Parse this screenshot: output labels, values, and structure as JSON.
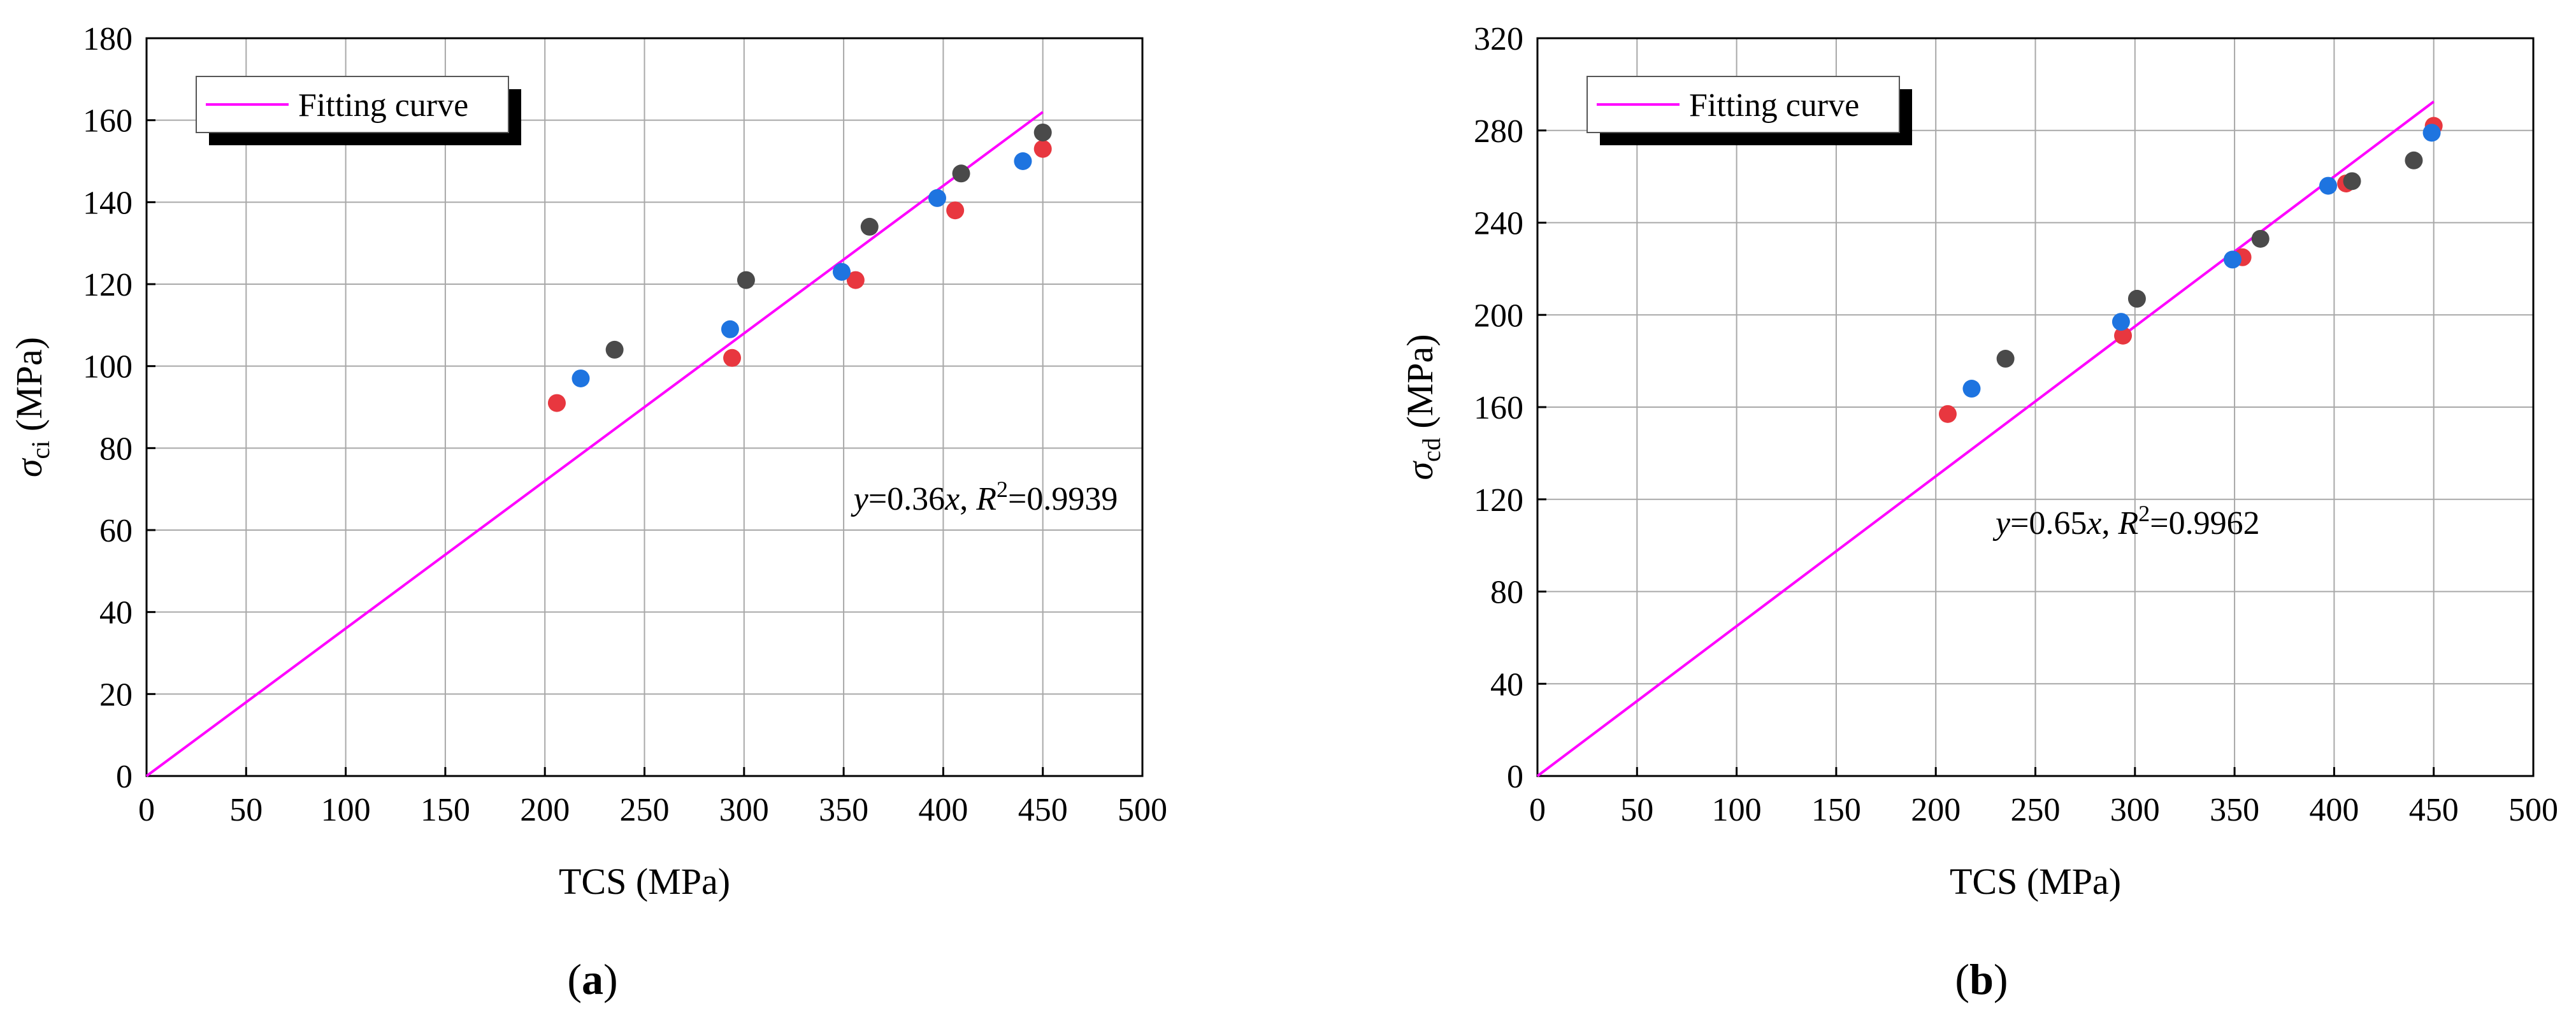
{
  "chart_data": [
    {
      "type": "scatter",
      "panel_label": "(a)",
      "xlabel": "TCS (MPa)",
      "ylabel": "σci (MPa)",
      "ylabel_symbol": "σ",
      "ylabel_sub": "ci",
      "ylabel_unit": "(MPa)",
      "xlim": [
        0,
        500
      ],
      "ylim": [
        0,
        180
      ],
      "xticks": [
        0,
        50,
        100,
        150,
        200,
        250,
        300,
        350,
        400,
        450,
        500
      ],
      "yticks": [
        0,
        20,
        40,
        60,
        80,
        100,
        120,
        140,
        160,
        180
      ],
      "grid": true,
      "legend": {
        "position": "top-left",
        "entries": [
          "Fitting curve"
        ]
      },
      "fit_line": {
        "slope": 0.36,
        "x_range": [
          0,
          450
        ],
        "color": "#ff00ff"
      },
      "annotation": {
        "y_var": "y",
        "equation": "=0.36",
        "x_var": "x",
        "r2_var": "R",
        "r2_exp": "2",
        "r2_value": "=0.9939",
        "at": [
          355,
          65
        ]
      },
      "series": [
        {
          "color": "#e8373f",
          "points": [
            [
              206,
              91
            ],
            [
              294,
              102
            ],
            [
              356,
              121
            ],
            [
              406,
              138
            ],
            [
              450,
              153
            ]
          ]
        },
        {
          "color": "#1e74e0",
          "points": [
            [
              218,
              97
            ],
            [
              293,
              109
            ],
            [
              349,
              123
            ],
            [
              397,
              141
            ],
            [
              440,
              150
            ]
          ]
        },
        {
          "color": "#4a4a4a",
          "points": [
            [
              235,
              104
            ],
            [
              301,
              121
            ],
            [
              363,
              134
            ],
            [
              409,
              147
            ],
            [
              450,
              157
            ]
          ]
        }
      ]
    },
    {
      "type": "scatter",
      "panel_label": "(b)",
      "xlabel": "TCS (MPa)",
      "ylabel": "σcd (MPa)",
      "ylabel_symbol": "σ",
      "ylabel_sub": "cd",
      "ylabel_unit": "(MPa)",
      "xlim": [
        0,
        500
      ],
      "ylim": [
        0,
        320
      ],
      "xticks": [
        0,
        50,
        100,
        150,
        200,
        250,
        300,
        350,
        400,
        450,
        500
      ],
      "yticks": [
        0,
        40,
        80,
        120,
        160,
        200,
        240,
        280,
        320
      ],
      "grid": true,
      "legend": {
        "position": "top-left",
        "entries": [
          "Fitting curve"
        ]
      },
      "fit_line": {
        "slope": 0.65,
        "x_range": [
          0,
          450
        ],
        "color": "#ff00ff"
      },
      "annotation": {
        "y_var": "y",
        "equation": "=0.65",
        "x_var": "x",
        "r2_var": "R",
        "r2_exp": "2",
        "r2_value": "=0.9962",
        "at": [
          230,
          105
        ]
      },
      "series": [
        {
          "color": "#e8373f",
          "points": [
            [
              206,
              157
            ],
            [
              294,
              191
            ],
            [
              354,
              225
            ],
            [
              406,
              257
            ],
            [
              450,
              282
            ]
          ]
        },
        {
          "color": "#1e74e0",
          "points": [
            [
              218,
              168
            ],
            [
              293,
              197
            ],
            [
              349,
              224
            ],
            [
              397,
              256
            ],
            [
              449,
              279
            ]
          ]
        },
        {
          "color": "#4a4a4a",
          "points": [
            [
              235,
              181
            ],
            [
              301,
              207
            ],
            [
              363,
              233
            ],
            [
              409,
              258
            ],
            [
              440,
              267
            ]
          ]
        }
      ]
    }
  ]
}
